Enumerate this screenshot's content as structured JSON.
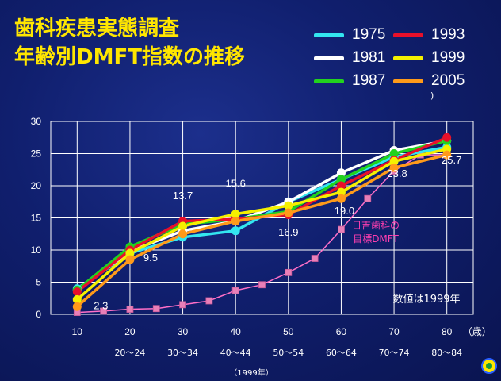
{
  "title": {
    "line1": "歯科疾患実態調査",
    "line2": "年齢別DMFT指数の推移"
  },
  "legend": {
    "items": [
      {
        "label": "1975",
        "color": "#33e6f0"
      },
      {
        "label": "1993",
        "color": "#e8102a"
      },
      {
        "label": "1981",
        "color": "#ffffff"
      },
      {
        "label": "1999",
        "color": "#f5f000"
      },
      {
        "label": "1987",
        "color": "#22d21e"
      },
      {
        "label": "2005",
        "color": "#ff9a1a"
      }
    ],
    "extra": ")"
  },
  "chart_data": {
    "type": "line",
    "x": [
      10,
      20,
      30,
      40,
      50,
      60,
      70,
      80
    ],
    "x_unit_label": "（歳）",
    "x_sub_labels": [
      "20～24",
      "30～34",
      "40～44",
      "50～54",
      "60～64",
      "70～74",
      "80～84"
    ],
    "x_footnote": "（1999年）",
    "ylim": [
      0,
      30
    ],
    "y_ticks": [
      0,
      5,
      10,
      15,
      20,
      25,
      30
    ],
    "grid": true,
    "series": [
      {
        "name": "1975",
        "color": "#33e6f0",
        "values": [
          4.0,
          9.5,
          12.0,
          13.0,
          17.5,
          21.0,
          24.5,
          26.0
        ]
      },
      {
        "name": "1981",
        "color": "#ffffff",
        "values": [
          3.8,
          9.8,
          13.0,
          14.5,
          17.5,
          22.0,
          25.5,
          27.0
        ]
      },
      {
        "name": "1987",
        "color": "#22d21e",
        "values": [
          3.8,
          10.5,
          14.0,
          14.8,
          16.0,
          21.0,
          25.0,
          27.0
        ]
      },
      {
        "name": "1993",
        "color": "#e8102a",
        "values": [
          3.5,
          10.0,
          14.5,
          14.8,
          15.5,
          20.0,
          24.0,
          27.5
        ]
      },
      {
        "name": "1999",
        "color": "#f5f000",
        "values": [
          2.3,
          9.5,
          13.7,
          15.6,
          16.9,
          19.0,
          23.8,
          25.7
        ]
      },
      {
        "name": "2005",
        "color": "#ff9a1a",
        "values": [
          1.2,
          8.5,
          12.5,
          14.5,
          15.8,
          18.0,
          22.8,
          24.8
        ]
      }
    ],
    "target_series": {
      "name": "日吉歯科の\n目標DMFT",
      "label_line1": "日吉歯科の",
      "label_line2": "目標DMFT",
      "color": "#ff6fc8",
      "x": [
        10,
        15,
        20,
        25,
        30,
        35,
        40,
        45,
        50,
        55,
        60,
        65,
        70,
        75,
        80
      ],
      "values": [
        0.3,
        0.5,
        0.8,
        0.9,
        1.5,
        2.1,
        3.7,
        4.6,
        6.5,
        8.7,
        13.2,
        18.0,
        22.3,
        24.8,
        24.8
      ]
    },
    "data_labels": [
      {
        "text": "2.3",
        "x": 10,
        "y": 2.3
      },
      {
        "text": "9.5",
        "x": 20,
        "y": 9.5
      },
      {
        "text": "13.7",
        "x": 30,
        "y": 13.7
      },
      {
        "text": "15.6",
        "x": 40,
        "y": 15.6
      },
      {
        "text": "16.9",
        "x": 50,
        "y": 16.9
      },
      {
        "text": "19.0",
        "x": 60,
        "y": 19.0
      },
      {
        "text": "23.8",
        "x": 70,
        "y": 23.8
      },
      {
        "text": "25.7",
        "x": 80,
        "y": 25.7
      }
    ],
    "annotation": "数値は1999年"
  }
}
